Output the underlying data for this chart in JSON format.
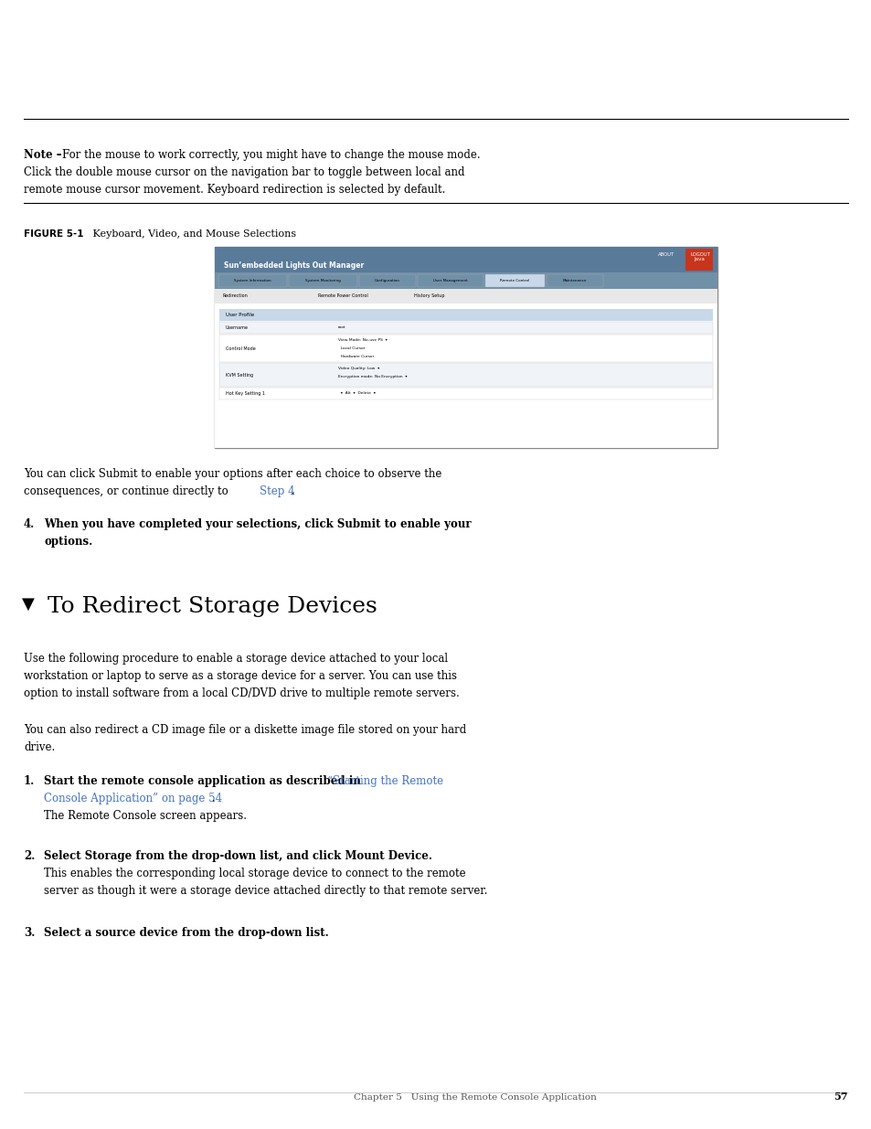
{
  "bg_color": "#ffffff",
  "page_width": 9.54,
  "page_height": 12.35,
  "lm": 0.26,
  "rm": 9.28,
  "note_bold": "Note –",
  "note_lines": [
    "For the mouse to work correctly, you might have to change the mouse mode.",
    "Click the double mouse cursor on the navigation bar to toggle between local and",
    "remote mouse cursor movement. Keyboard redirection is selected by default."
  ],
  "figure_label": "FIGURE 5-1",
  "figure_caption": "   Keyboard, Video, and Mouse Selections",
  "submit_line1": "You can click Submit to enable your options after each choice to observe the",
  "submit_line2_pre": "consequences, or continue directly to ",
  "submit_line2_link": "Step 4",
  "submit_line2_post": ".",
  "step4_line1": "When you have completed your selections, click Submit to enable your",
  "step4_line2": "options.",
  "section_triangle": "▼",
  "section_title": "To Redirect Storage Devices",
  "p1_lines": [
    "Use the following procedure to enable a storage device attached to your local",
    "workstation or laptop to serve as a storage device for a server. You can use this",
    "option to install software from a local CD/DVD drive to multiple remote servers."
  ],
  "p2_lines": [
    "You can also redirect a CD image file or a diskette image file stored on your hard",
    "drive."
  ],
  "step1_bold": "Start the remote console application as described in ",
  "step1_link_line1": "“Starting the Remote",
  "step1_link_line2": "Console Application” on page 54",
  "step1_link_end": ".",
  "step1_sub": "The Remote Console screen appears.",
  "step2_bold": "Select Storage from the drop-down list, and click Mount Device.",
  "step2_sub1": "This enables the corresponding local storage device to connect to the remote",
  "step2_sub2": "server as though it were a storage device attached directly to that remote server.",
  "step3_bold": "Select a source device from the drop-down list.",
  "footer_text": "Chapter 5   Using the Remote Console Application",
  "footer_page": "57",
  "link_color": "#4472c4",
  "text_color": "#000000",
  "toolbar_color": "#5a7a9a",
  "nav_color": "#7090a8",
  "nav_active_color": "#c8d8e8",
  "sub_bg_color": "#e8e8e8",
  "up_header_color": "#c8d8e8",
  "nav_tabs": [
    "System Information",
    "System Monitoring",
    "Configuration",
    "User Management",
    "Remote Control",
    "Maintenance"
  ],
  "sub_tabs": [
    "Redirection",
    "Remote Power Control",
    "History Setup"
  ]
}
